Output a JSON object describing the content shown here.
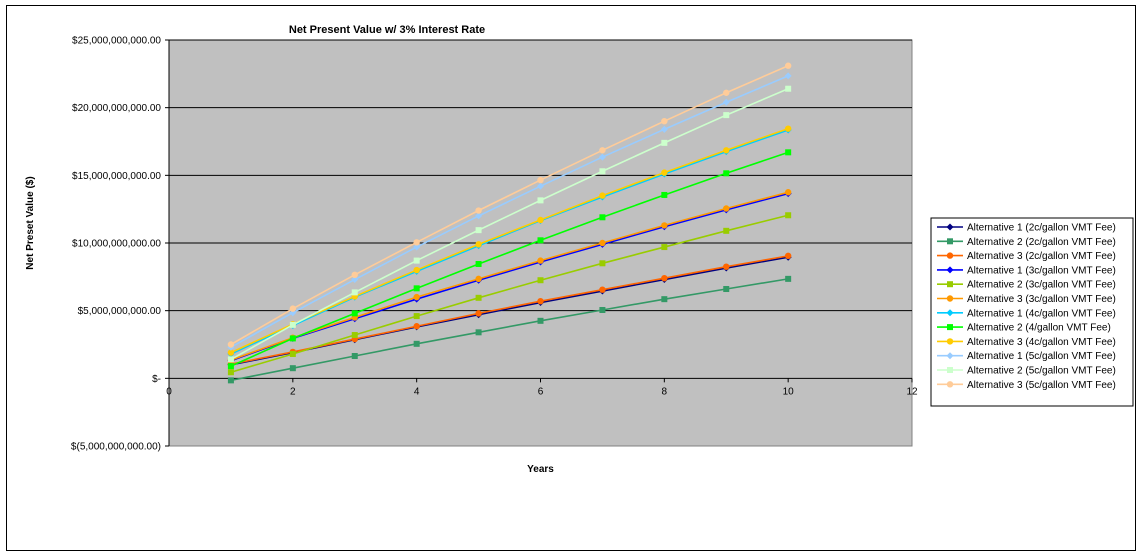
{
  "chart_data": {
    "type": "line",
    "title": "Net Present Value w/ 3% Interest Rate",
    "xlabel": "Years",
    "ylabel": "Net Preset Value ($)",
    "xlim": [
      0,
      12
    ],
    "ylim": [
      -5000000000,
      25000000000
    ],
    "x_ticks": [
      0,
      2,
      4,
      6,
      8,
      10,
      12
    ],
    "y_ticks": [
      -5000000000,
      0,
      5000000000,
      10000000000,
      15000000000,
      20000000000,
      25000000000
    ],
    "y_tick_labels": [
      "$(5,000,000,000.00)",
      "$-",
      "$5,000,000,000.00",
      "$10,000,000,000.00",
      "$15,000,000,000.00",
      "$20,000,000,000.00",
      "$25,000,000,000.00"
    ],
    "x_tick_labels": [
      "0",
      "2",
      "4",
      "6",
      "8",
      "10",
      "12"
    ],
    "grid": "horizontal",
    "legend_position": "right",
    "plot_background": "#c0c0c0",
    "x": [
      1,
      2,
      3,
      4,
      5,
      6,
      7,
      8,
      9,
      10
    ],
    "series": [
      {
        "name": "Alternative 1 (2c/gallon VMT Fee)",
        "color": "#000080",
        "marker": "diamond",
        "values": [
          1000000000,
          1900000000,
          2850000000,
          3800000000,
          4700000000,
          5600000000,
          6450000000,
          7300000000,
          8150000000,
          8950000000
        ]
      },
      {
        "name": "Alternative 2 (2c/gallon VMT Fee)",
        "color": "#339966",
        "marker": "square",
        "values": [
          -150000000,
          750000000,
          1650000000,
          2550000000,
          3400000000,
          4250000000,
          5050000000,
          5850000000,
          6600000000,
          7350000000
        ]
      },
      {
        "name": "Alternative 3 (2c/gallon VMT Fee)",
        "color": "#ff6600",
        "marker": "circle",
        "values": [
          1050000000,
          1950000000,
          2900000000,
          3850000000,
          4800000000,
          5700000000,
          6550000000,
          7400000000,
          8250000000,
          9050000000
        ]
      },
      {
        "name": "Alternative 1 (3c/gallon VMT Fee)",
        "color": "#0000ff",
        "marker": "diamond",
        "values": [
          1300000000,
          2950000000,
          4400000000,
          5850000000,
          7250000000,
          8600000000,
          9900000000,
          11200000000,
          12450000000,
          13650000000
        ]
      },
      {
        "name": "Alternative 2 (3c/gallon VMT Fee)",
        "color": "#99cc00",
        "marker": "square",
        "values": [
          450000000,
          1800000000,
          3200000000,
          4600000000,
          5950000000,
          7250000000,
          8500000000,
          9700000000,
          10900000000,
          12050000000
        ]
      },
      {
        "name": "Alternative 3 (3c/gallon VMT Fee)",
        "color": "#ff9900",
        "marker": "circle",
        "values": [
          1350000000,
          3000000000,
          4500000000,
          6000000000,
          7350000000,
          8700000000,
          10000000000,
          11300000000,
          12550000000,
          13750000000
        ]
      },
      {
        "name": "Alternative 1 (4c/gallon VMT Fee)",
        "color": "#00ccff",
        "marker": "diamond",
        "values": [
          1800000000,
          3900000000,
          6000000000,
          7900000000,
          9800000000,
          11650000000,
          13400000000,
          15100000000,
          16750000000,
          18350000000
        ]
      },
      {
        "name": "Alternative 2 (4/gallon VMT Fee)",
        "color": "#00ff00",
        "marker": "square",
        "values": [
          900000000,
          2950000000,
          4800000000,
          6650000000,
          8450000000,
          10200000000,
          11900000000,
          13550000000,
          15150000000,
          16700000000
        ]
      },
      {
        "name": "Alternative 3 (4c/gallon VMT Fee)",
        "color": "#ffcc00",
        "marker": "circle",
        "values": [
          1900000000,
          4000000000,
          6050000000,
          8000000000,
          9900000000,
          11700000000,
          13500000000,
          15200000000,
          16850000000,
          18450000000
        ]
      },
      {
        "name": "Alternative 1 (5c/gallon VMT Fee)",
        "color": "#99ccff",
        "marker": "diamond",
        "values": [
          2300000000,
          4850000000,
          7300000000,
          9700000000,
          12000000000,
          14200000000,
          16350000000,
          18400000000,
          20400000000,
          22350000000
        ]
      },
      {
        "name": "Alternative 2 (5c/gallon VMT Fee)",
        "color": "#ccffcc",
        "marker": "square",
        "values": [
          1400000000,
          3950000000,
          6350000000,
          8700000000,
          10950000000,
          13150000000,
          15300000000,
          17400000000,
          19450000000,
          21400000000
        ]
      },
      {
        "name": "Alternative 3 (5c/gallon VMT Fee)",
        "color": "#ffcc99",
        "marker": "circle",
        "values": [
          2500000000,
          5150000000,
          7650000000,
          10050000000,
          12400000000,
          14650000000,
          16850000000,
          19000000000,
          21100000000,
          23100000000
        ]
      }
    ]
  }
}
